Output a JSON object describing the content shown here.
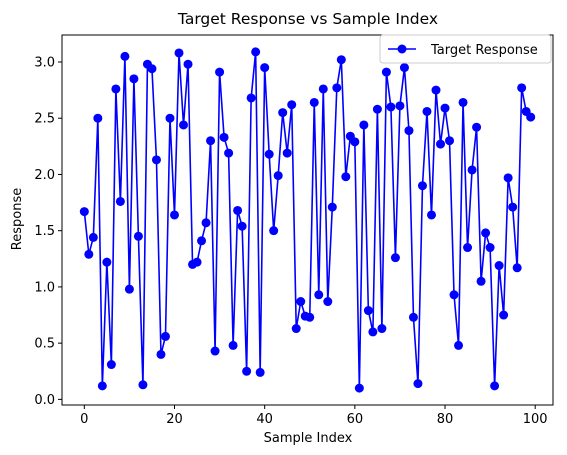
{
  "chart_data": {
    "type": "line",
    "title": "Target Response vs Sample Index",
    "xlabel": "Sample Index",
    "ylabel": "Response",
    "xlim": [
      -4.95,
      103.95
    ],
    "ylim": [
      -0.05,
      3.24
    ],
    "x_ticks": [
      0,
      20,
      40,
      60,
      80,
      100
    ],
    "y_ticks": [
      0.0,
      0.5,
      1.0,
      1.5,
      2.0,
      2.5,
      3.0
    ],
    "x_tick_labels": [
      "0",
      "20",
      "40",
      "60",
      "80",
      "100"
    ],
    "y_tick_labels": [
      "0.0",
      "0.5",
      "1.0",
      "1.5",
      "2.0",
      "2.5",
      "3.0"
    ],
    "grid": false,
    "legend_position": "top-right",
    "series": [
      {
        "name": "Target Response",
        "color": "#0000ff",
        "marker": "circle",
        "x": [
          0,
          1,
          2,
          3,
          4,
          5,
          6,
          7,
          8,
          9,
          10,
          11,
          12,
          13,
          14,
          15,
          16,
          17,
          18,
          19,
          20,
          21,
          22,
          23,
          24,
          25,
          26,
          27,
          28,
          29,
          30,
          31,
          32,
          33,
          34,
          35,
          36,
          37,
          38,
          39,
          40,
          41,
          42,
          43,
          44,
          45,
          46,
          47,
          48,
          49,
          50,
          51,
          52,
          53,
          54,
          55,
          56,
          57,
          58,
          59,
          60,
          61,
          62,
          63,
          64,
          65,
          66,
          67,
          68,
          69,
          70,
          71,
          72,
          73,
          74,
          75,
          76,
          77,
          78,
          79,
          80,
          81,
          82,
          83,
          84,
          85,
          86,
          87,
          88,
          89,
          90,
          91,
          92,
          93,
          94,
          95,
          96,
          97,
          98,
          99
        ],
        "values": [
          1.67,
          1.29,
          1.44,
          2.5,
          0.12,
          1.22,
          0.31,
          2.76,
          1.76,
          3.05,
          0.98,
          2.85,
          1.45,
          0.13,
          2.98,
          2.94,
          2.13,
          0.4,
          0.56,
          2.5,
          1.64,
          3.08,
          2.44,
          2.98,
          1.2,
          1.22,
          1.41,
          1.57,
          2.3,
          0.43,
          2.91,
          2.33,
          2.19,
          0.48,
          1.68,
          1.54,
          0.25,
          2.68,
          3.09,
          0.24,
          2.95,
          2.18,
          1.5,
          1.99,
          2.55,
          2.19,
          2.62,
          0.63,
          0.87,
          0.74,
          0.73,
          2.64,
          0.93,
          2.76,
          0.87,
          1.71,
          2.77,
          3.02,
          1.98,
          2.34,
          2.29,
          0.1,
          2.44,
          0.79,
          0.6,
          2.58,
          0.63,
          2.91,
          2.6,
          1.26,
          2.61,
          2.95,
          2.39,
          0.73,
          0.14,
          1.9,
          2.56,
          1.64,
          2.75,
          2.27,
          2.59,
          2.3,
          0.93,
          0.48,
          2.64,
          1.35,
          2.04,
          2.42,
          1.05,
          1.48,
          1.35,
          0.12,
          1.19,
          0.75,
          1.97,
          1.71,
          1.17,
          2.77,
          2.56,
          2.51
        ]
      }
    ]
  }
}
